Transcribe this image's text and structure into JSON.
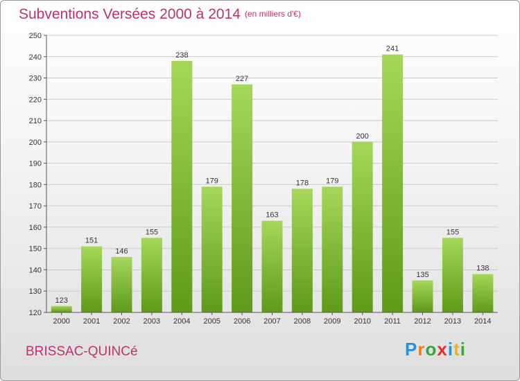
{
  "title": "Subventions Versées 2000 à 2014",
  "subtitle": "(en milliers d'€)",
  "commune": "BRISSAC-QUINCé",
  "logo": {
    "letters": [
      "P",
      "r",
      "o",
      "x",
      "i",
      "t",
      "i"
    ],
    "colors": [
      "#2a8fd6",
      "#f07d1c",
      "#3aa53a",
      "#e0302e",
      "#2a8fd6",
      "#f0b11c",
      "#3aa53a"
    ]
  },
  "colors": {
    "bar_light": "#a6d75a",
    "bar_dark": "#5f9a1a",
    "text_accent": "#c0306a",
    "grid": "#c9c9c9"
  },
  "chart_data": {
    "type": "bar",
    "title": "Subventions Versées 2000 à 2014",
    "subtitle": "(en milliers d'€)",
    "categories": [
      "2000",
      "2001",
      "2002",
      "2003",
      "2004",
      "2005",
      "2006",
      "2007",
      "2008",
      "2009",
      "2010",
      "2011",
      "2012",
      "2013",
      "2014"
    ],
    "values": [
      123,
      151,
      146,
      155,
      238,
      179,
      227,
      163,
      178,
      179,
      200,
      241,
      135,
      155,
      138
    ],
    "ylim": [
      120,
      250
    ],
    "yticks": [
      120,
      130,
      140,
      150,
      160,
      170,
      180,
      190,
      200,
      210,
      220,
      230,
      240,
      250
    ],
    "grid": true,
    "xlabel": "",
    "ylabel": ""
  }
}
